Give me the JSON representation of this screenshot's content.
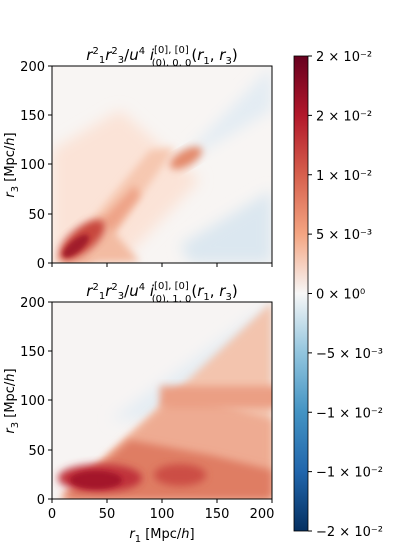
{
  "chart_data": [
    {
      "type": "heatmap",
      "title": "r_1^2 r_3^2/u^4 i^{[0],[0]}_{(0),0,0}(r_1, r_3)",
      "xlabel": "",
      "ylabel": "r_3 [Mpc/h]",
      "xlim": [
        0,
        200
      ],
      "ylim": [
        0,
        200
      ],
      "xticks": [],
      "yticks": [
        "0",
        "50",
        "100",
        "150",
        "200"
      ],
      "colormap": "RdBu_r",
      "features": [
        {
          "region": "peak near r1≈r3≈25",
          "value": 0.02
        },
        {
          "region": "ridge along r1=r3 diagonal",
          "value": 0.01
        },
        {
          "region": "spot near (115,105)",
          "value": 0.012
        },
        {
          "region": "above diagonal, r1>110",
          "value": -0.002
        },
        {
          "region": "below diagonal, r1>110",
          "value": -0.003
        }
      ]
    },
    {
      "type": "heatmap",
      "title": "r_1^2 r_3^2/u^4 i^{[0],[0]}_{(0),1,0}(r_1, r_3)",
      "xlabel": "r_1 [Mpc/h]",
      "ylabel": "r_3 [Mpc/h]",
      "xlim": [
        0,
        200
      ],
      "ylim": [
        0,
        200
      ],
      "xticks": [
        "0",
        "50",
        "100",
        "150",
        "200"
      ],
      "yticks": [
        "0",
        "50",
        "100",
        "150",
        "200"
      ],
      "colormap": "RdBu_r",
      "features": [
        {
          "region": "lower triangle, r3<r1",
          "value": 0.009
        },
        {
          "region": "peak near (40,15)",
          "value": 0.02
        },
        {
          "region": "horizontal band r3≈100-110, r1>110",
          "value": 0.01
        },
        {
          "region": "upper triangle, r3>r1",
          "value": -0.002
        }
      ]
    }
  ],
  "colorbar": {
    "range": [
      -0.02,
      0.02
    ],
    "ticks": [
      {
        "value": 0.02,
        "label": "2 × 10⁻²"
      },
      {
        "value": 0.015,
        "label": "2 × 10⁻²"
      },
      {
        "value": 0.01,
        "label": "1 × 10⁻²"
      },
      {
        "value": 0.005,
        "label": "5 × 10⁻³"
      },
      {
        "value": 0,
        "label": "0 × 10⁰"
      },
      {
        "value": -0.005,
        "label": "−5 × 10⁻³"
      },
      {
        "value": -0.01,
        "label": "−1 × 10⁻²"
      },
      {
        "value": -0.015,
        "label": "−1 × 10⁻²"
      },
      {
        "value": -0.02,
        "label": "−2 × 10⁻²"
      }
    ]
  }
}
